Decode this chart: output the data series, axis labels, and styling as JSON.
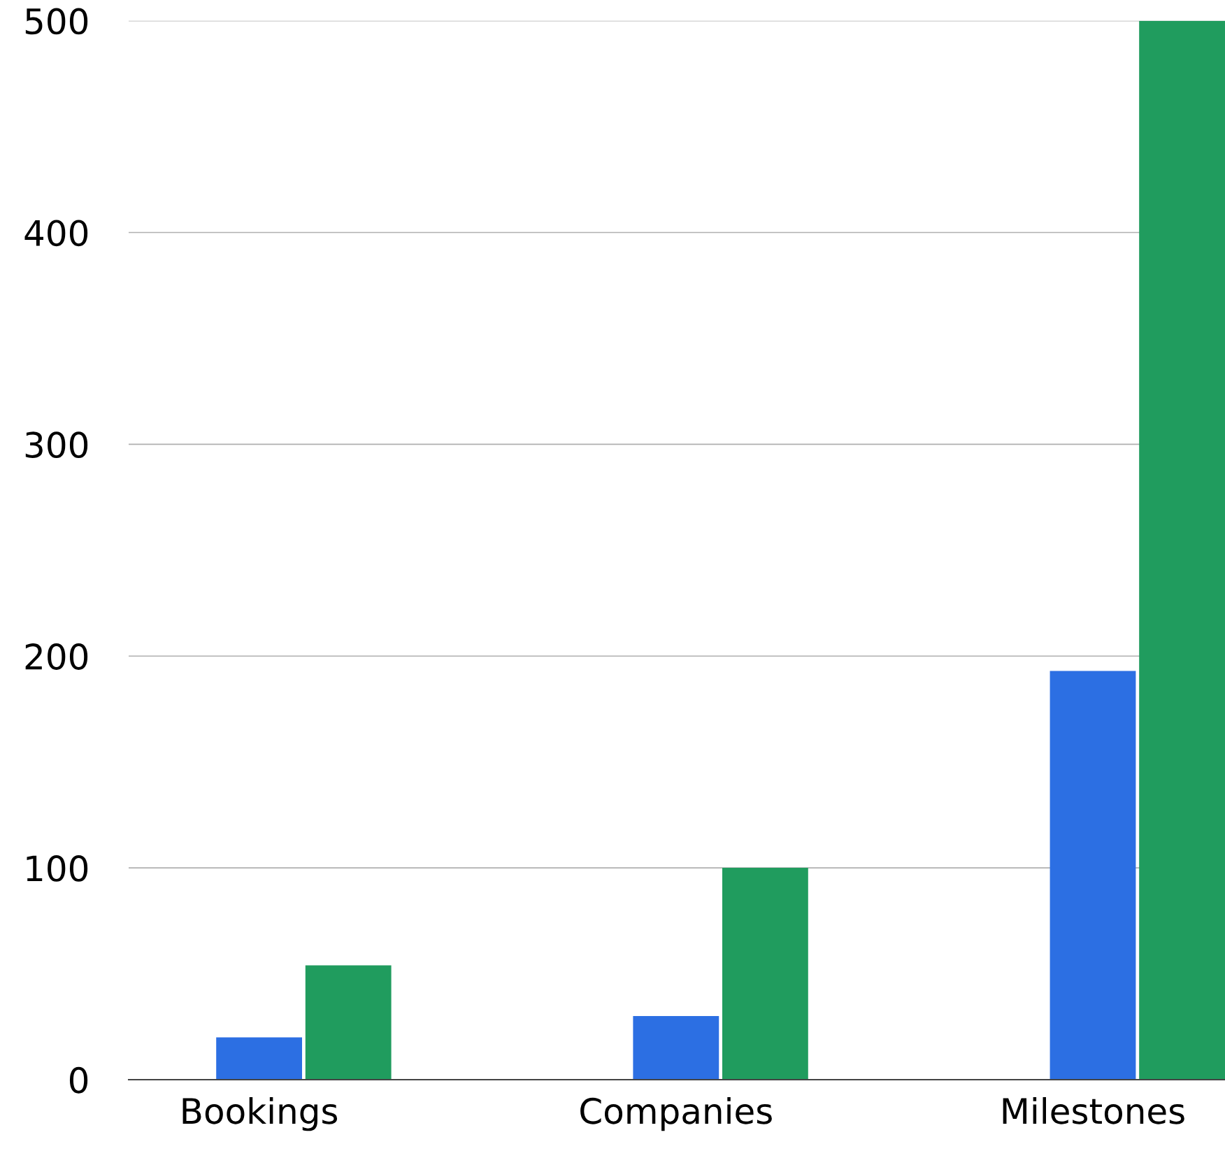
{
  "chart_data": {
    "type": "bar",
    "categories": [
      "Bookings",
      "Companies",
      "Milestones"
    ],
    "series": [
      {
        "color": "#2c6fe3",
        "values": [
          20,
          30,
          193
        ]
      },
      {
        "color": "#209c5e",
        "values": [
          54,
          100,
          500
        ]
      }
    ],
    "ylim": [
      0,
      500
    ],
    "yticks": [
      0,
      100,
      200,
      300,
      400,
      500
    ],
    "grid": "y",
    "legend": false
  }
}
